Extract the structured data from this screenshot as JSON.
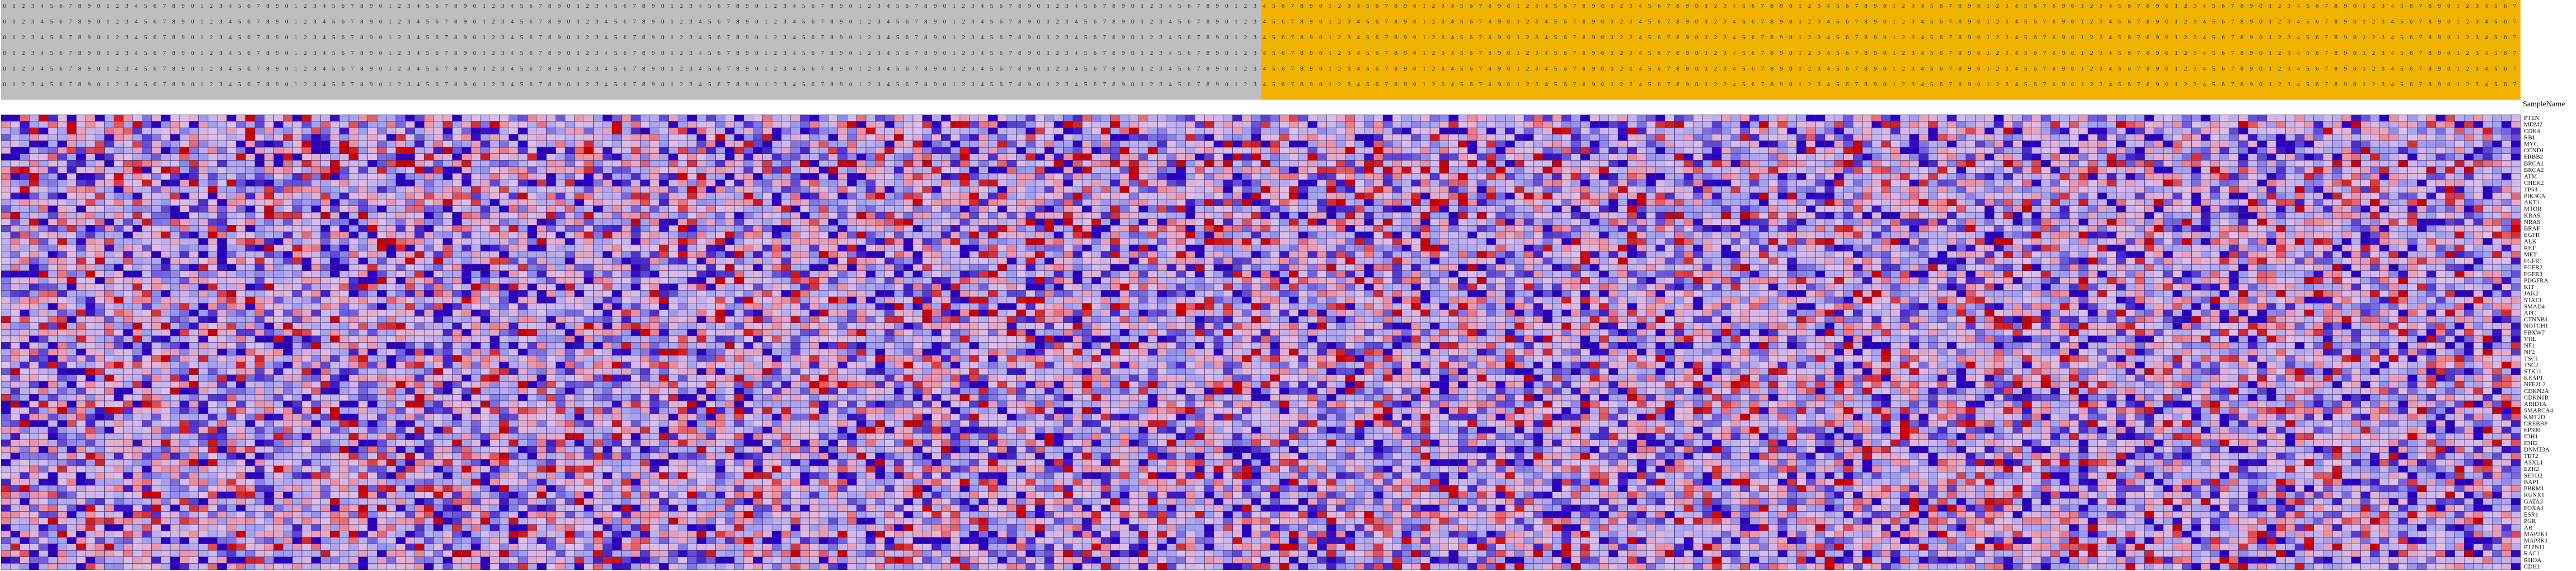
{
  "chart_data": {
    "type": "heatmap",
    "title": "",
    "xlabel": "",
    "ylabel": "",
    "legend_title": "SampleName",
    "colormap": {
      "low": "#2a00c0",
      "mid_low": "#9e9ef0",
      "mid": "#dcc0e8",
      "mid_high": "#f08a96",
      "high": "#cc0000"
    },
    "value_range": [
      -2,
      2
    ],
    "group_colors": {
      "left": "#bebebe",
      "right": "#f0b400"
    },
    "column_groups": [
      {
        "label": "left",
        "count": 134
      },
      {
        "label": "right",
        "count": 134
      }
    ],
    "column_label_prefix": "s",
    "row_labels": [
      "PTEN",
      "MDM2",
      "CDK4",
      "RB1",
      "MYC",
      "CCND1",
      "ERBB2",
      "BRCA1",
      "BRCA2",
      "ATM",
      "CHEK2",
      "TP53",
      "PIK3CA",
      "AKT1",
      "MTOR",
      "KRAS",
      "NRAS",
      "BRAF",
      "EGFR",
      "ALK",
      "RET",
      "MET",
      "FGFR1",
      "FGFR2",
      "FGFR3",
      "PDGFRA",
      "KIT",
      "JAK2",
      "STAT3",
      "SMAD4",
      "APC",
      "CTNNB1",
      "NOTCH1",
      "FBXW7",
      "VHL",
      "NF1",
      "NF2",
      "TSC1",
      "TSC2",
      "STK11",
      "KEAP1",
      "NFE2L2",
      "CDKN2A",
      "CDKN1B",
      "ARID1A",
      "SMARCA4",
      "KMT2D",
      "CREBBP",
      "EP300",
      "IDH1",
      "IDH2",
      "DNMT3A",
      "TET2",
      "ASXL1",
      "EZH2",
      "SETD2",
      "BAP1",
      "PBRM1",
      "RUNX1",
      "GATA3",
      "FOXA1",
      "ESR1",
      "PGR",
      "AR",
      "MAP2K1",
      "MAP3K1",
      "PTPN11",
      "RAC1",
      "RHOA",
      "CDH1"
    ],
    "seed": 42
  }
}
